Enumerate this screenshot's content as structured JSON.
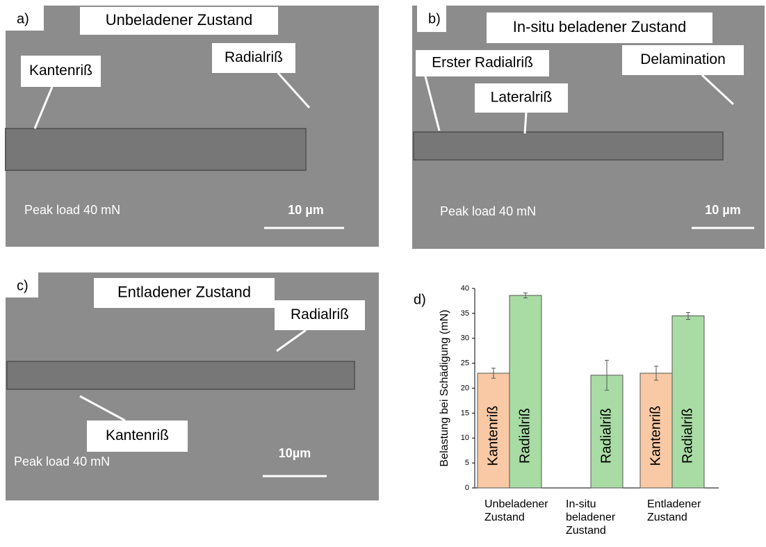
{
  "panels": [
    {
      "label": "a)",
      "title": "Unbeladener Zustand",
      "callouts": [
        "Kantenriß",
        "Radialriß"
      ],
      "load": "Peak load 40 mN",
      "scale": "10 µm"
    },
    {
      "label": "b)",
      "title": "In-situ beladener Zustand",
      "callouts": [
        "Erster Radialriß",
        "Lateralriß",
        "Delamination"
      ],
      "load": "Peak load 40 mN",
      "scale": "10 µm"
    },
    {
      "label": "c)",
      "title": "Entladener  Zustand",
      "callouts": [
        "Radialriß",
        "Kantenriß"
      ],
      "load": "Peak load 40 mN",
      "scale": "10µm"
    }
  ],
  "chart_data": {
    "type": "bar",
    "label": "d)",
    "y_label": "Belastung bei Schädigung (mN)",
    "categories": [
      "Unbeladener Zustand",
      "In-situ beladener Zustand",
      "Entladener Zustand"
    ],
    "series": [
      {
        "name": "Kantenriß",
        "color": "#f8c9a4",
        "values": [
          23,
          null,
          23
        ],
        "errors": [
          1,
          null,
          1.4
        ]
      },
      {
        "name": "Radialriß",
        "color": "#a8dca4",
        "values": [
          38.6,
          22.6,
          34.5
        ],
        "errors": [
          0.5,
          3,
          0.7
        ]
      }
    ],
    "ylim": [
      0,
      40
    ],
    "yticks": [
      0,
      5,
      10,
      15,
      20,
      25,
      30,
      35,
      40
    ]
  }
}
